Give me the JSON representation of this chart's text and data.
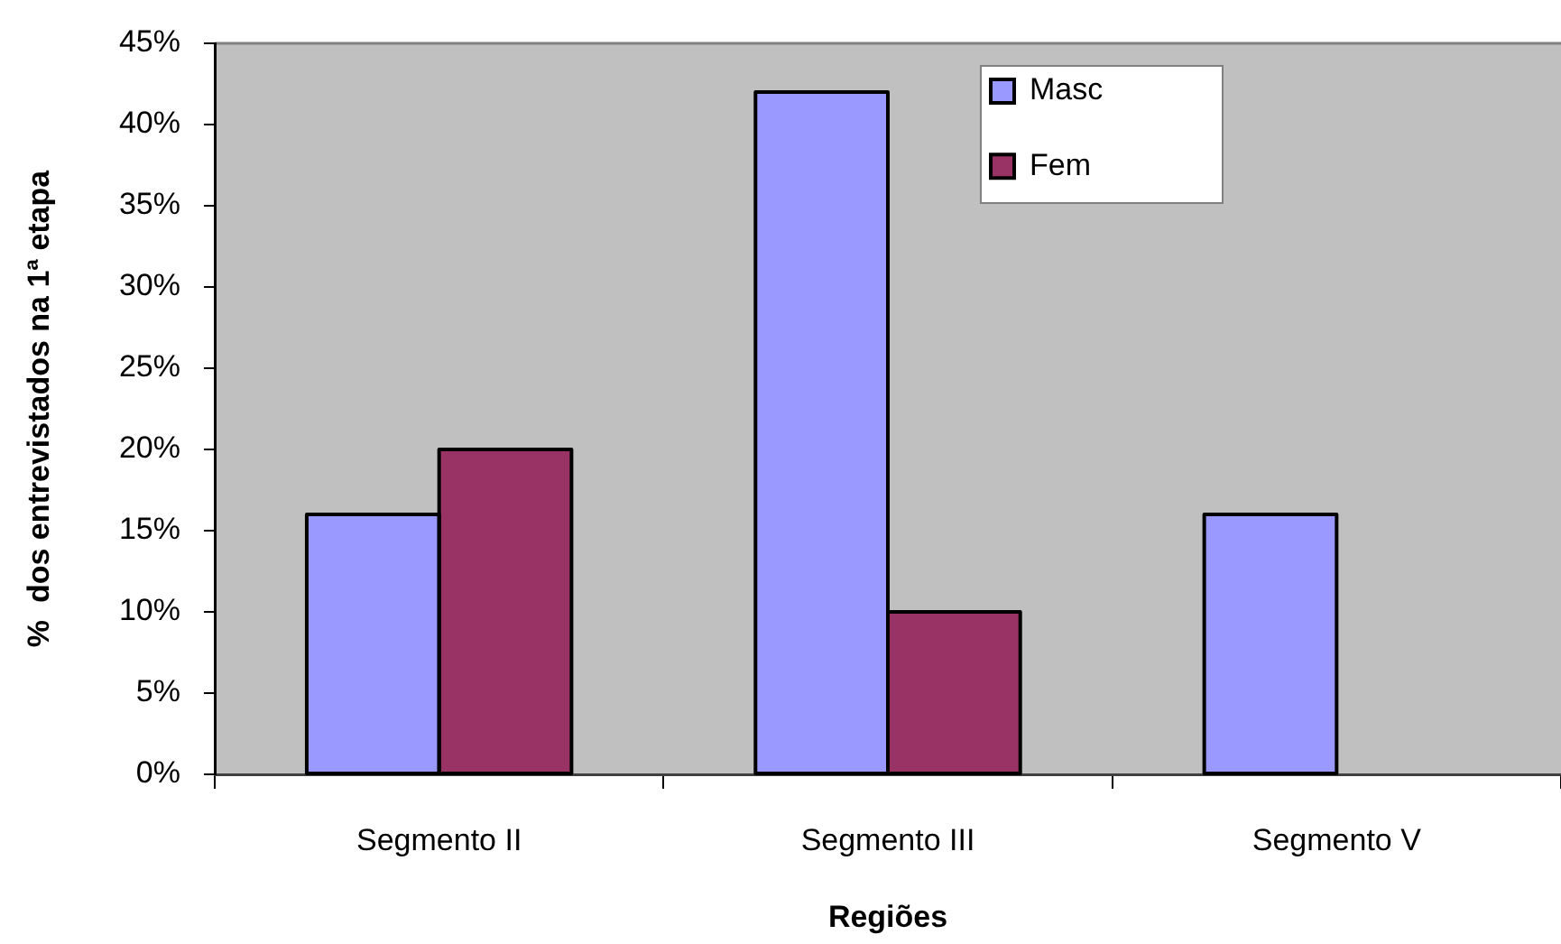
{
  "chart_data": {
    "type": "bar",
    "xlabel": "Regiões",
    "ylabel": "%  dos entrevistados na 1ª etapa",
    "categories": [
      "Segmento II",
      "Segmento III",
      "Segmento V"
    ],
    "series": [
      {
        "name": "Masc",
        "color": "#9999ff",
        "values": [
          16,
          42,
          16
        ]
      },
      {
        "name": "Fem",
        "color": "#993366",
        "values": [
          20,
          10,
          null
        ]
      }
    ],
    "ylim": [
      0,
      45
    ],
    "yticks": [
      {
        "value": 0,
        "label": "0%"
      },
      {
        "value": 5,
        "label": "5%"
      },
      {
        "value": 10,
        "label": "10%"
      },
      {
        "value": 15,
        "label": "15%"
      },
      {
        "value": 20,
        "label": "20%"
      },
      {
        "value": 25,
        "label": "25%"
      },
      {
        "value": 30,
        "label": "30%"
      },
      {
        "value": 35,
        "label": "35%"
      },
      {
        "value": 40,
        "label": "40%"
      },
      {
        "value": 45,
        "label": "45%"
      }
    ],
    "legend": "top right"
  }
}
